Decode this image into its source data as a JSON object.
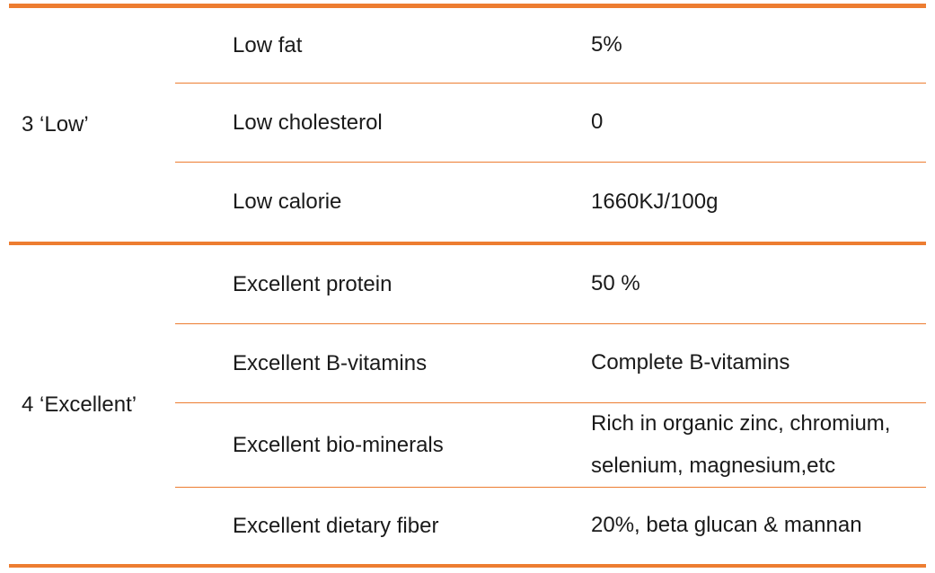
{
  "table": {
    "accent_color": "#ED7D31",
    "text_color": "#1A1A1A",
    "sections": [
      {
        "group_label": "3 ‘Low’",
        "rows": [
          {
            "label": "Low fat",
            "value": "5%"
          },
          {
            "label": "Low cholesterol",
            "value": "0"
          },
          {
            "label": "Low calorie",
            "value": "1660KJ/100g"
          }
        ]
      },
      {
        "group_label": "4 ‘Excellent’",
        "rows": [
          {
            "label": "Excellent protein",
            "value": "50 %"
          },
          {
            "label": "Excellent B-vitamins",
            "value": "Complete B-vitamins"
          },
          {
            "label": "Excellent bio-minerals",
            "value": "Rich in organic zinc, chromium, selenium, magnesium,etc"
          },
          {
            "label": "Excellent dietary fiber",
            "value": "20%, beta glucan & mannan"
          }
        ]
      }
    ]
  }
}
